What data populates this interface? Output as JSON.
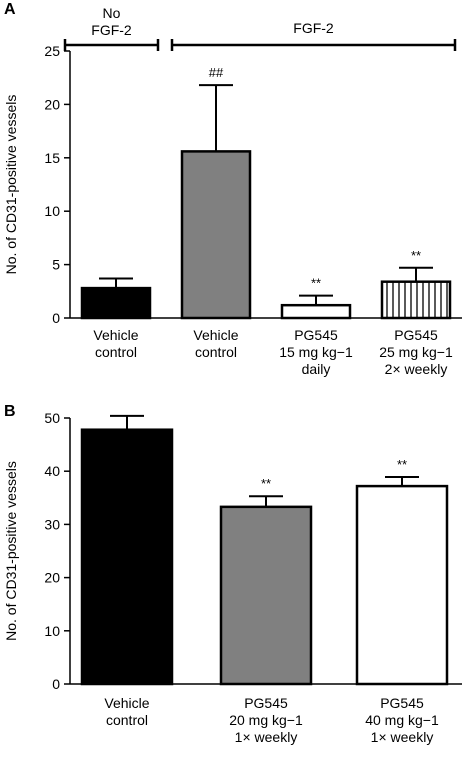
{
  "chart_data": [
    {
      "panel": "A",
      "type": "bar",
      "ylabel": "No. of CD31-positive vessels",
      "ylim": [
        0,
        25
      ],
      "yticks": [
        "0",
        "5",
        "10",
        "15",
        "20",
        "25"
      ],
      "groups": [
        {
          "label_lines": [
            "No",
            "FGF-2"
          ]
        },
        {
          "label_lines": [
            "FGF-2"
          ]
        }
      ],
      "bars": [
        {
          "label_lines": [
            "Vehicle",
            "control"
          ],
          "value": 2.8,
          "error": 0.9,
          "sig": "",
          "fill": "#000000",
          "pattern": "solid"
        },
        {
          "label_lines": [
            "Vehicle",
            "control"
          ],
          "value": 15.6,
          "error": 6.2,
          "sig": "##",
          "fill": "#808080",
          "pattern": "solid"
        },
        {
          "label_lines": [
            "PG545",
            "15 mg kg−1",
            "daily"
          ],
          "value": 1.2,
          "error": 0.9,
          "sig": "**",
          "fill": "#ffffff",
          "pattern": "solid"
        },
        {
          "label_lines": [
            "PG545",
            "25 mg kg−1",
            "2× weekly"
          ],
          "value": 3.4,
          "error": 1.3,
          "sig": "**",
          "fill": "#ffffff",
          "pattern": "vertical-stripes"
        }
      ]
    },
    {
      "panel": "B",
      "type": "bar",
      "ylabel": "No. of CD31-positive vessels",
      "ylim": [
        0,
        50
      ],
      "yticks": [
        "0",
        "10",
        "20",
        "30",
        "40",
        "50"
      ],
      "bars": [
        {
          "label_lines": [
            "Vehicle",
            "control"
          ],
          "value": 47.8,
          "error": 2.6,
          "sig": "",
          "fill": "#000000",
          "pattern": "solid"
        },
        {
          "label_lines": [
            "PG545",
            "20 mg kg−1",
            "1× weekly"
          ],
          "value": 33.3,
          "error": 2.0,
          "sig": "**",
          "fill": "#808080",
          "pattern": "solid"
        },
        {
          "label_lines": [
            "PG545",
            "40 mg kg−1",
            "1× weekly"
          ],
          "value": 37.2,
          "error": 1.7,
          "sig": "**",
          "fill": "#ffffff",
          "pattern": "solid"
        }
      ]
    }
  ]
}
